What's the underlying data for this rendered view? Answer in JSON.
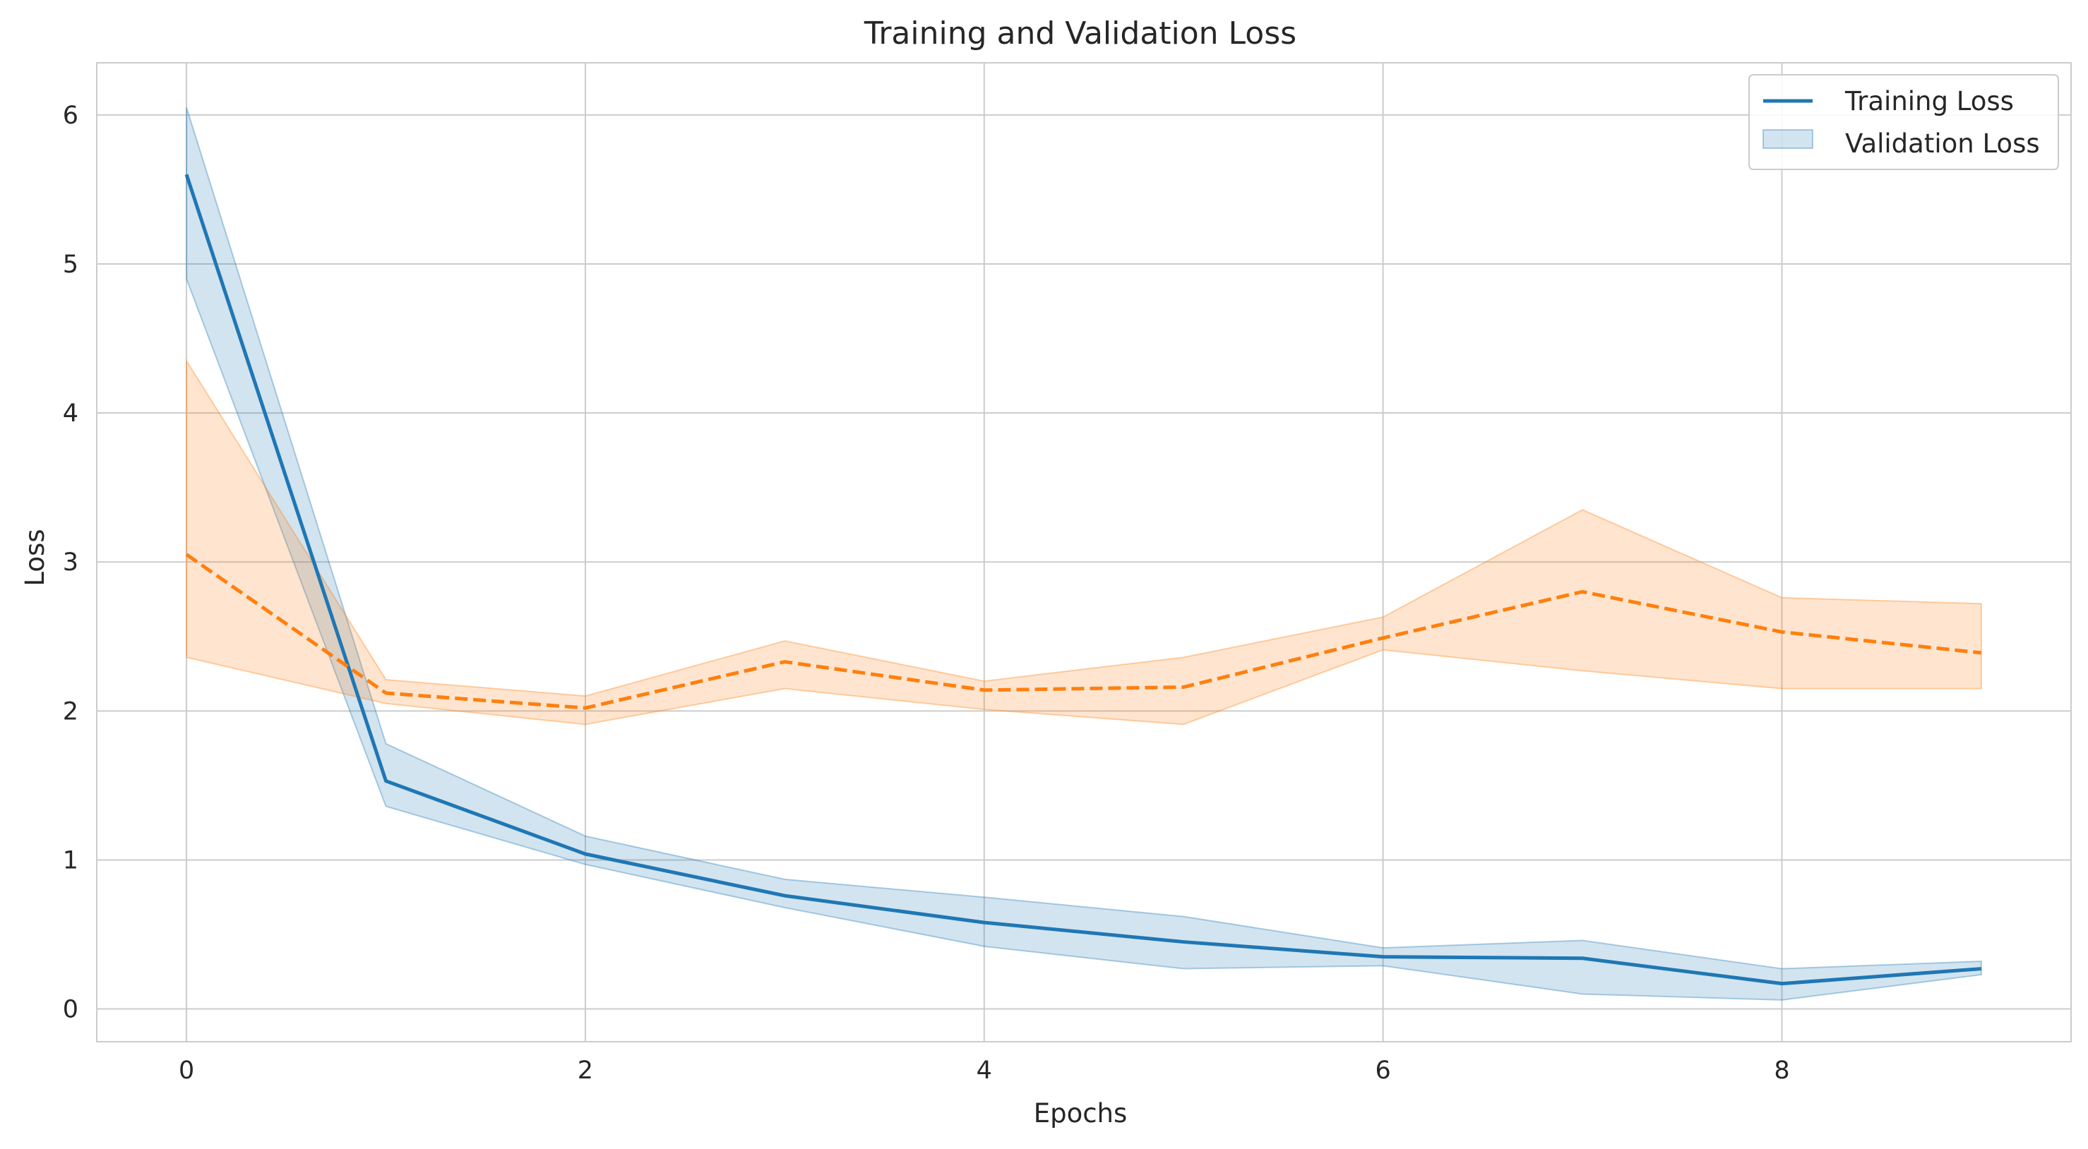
{
  "chart_data": {
    "type": "line",
    "title": "Training and Validation Loss",
    "xlabel": "Epochs",
    "ylabel": "Loss",
    "xlim": [
      -0.45,
      9.45
    ],
    "ylim": [
      -0.22,
      6.35
    ],
    "x_ticks": [
      0,
      2,
      4,
      6,
      8
    ],
    "y_ticks": [
      0,
      1,
      2,
      3,
      4,
      5,
      6
    ],
    "grid": true,
    "legend_position": "top-right",
    "legend": [
      "Training Loss",
      "Validation Loss"
    ],
    "x": [
      0,
      1,
      2,
      3,
      4,
      5,
      6,
      7,
      8,
      9
    ],
    "series": [
      {
        "name": "Training Loss",
        "color": "#1f77b4",
        "line_style": "solid",
        "values": [
          5.6,
          1.53,
          1.04,
          0.76,
          0.58,
          0.45,
          0.35,
          0.34,
          0.17,
          0.27
        ],
        "band_lower": [
          4.9,
          1.36,
          0.97,
          0.68,
          0.42,
          0.27,
          0.29,
          0.1,
          0.06,
          0.23
        ],
        "band_upper": [
          6.05,
          1.78,
          1.16,
          0.87,
          0.75,
          0.62,
          0.41,
          0.46,
          0.27,
          0.32
        ]
      },
      {
        "name": "",
        "color": "#ff7f0e",
        "line_style": "dashed",
        "values": [
          3.05,
          2.12,
          2.02,
          2.33,
          2.14,
          2.16,
          2.49,
          2.8,
          2.53,
          2.39
        ],
        "band_lower": [
          2.36,
          2.05,
          1.91,
          2.15,
          2.01,
          1.91,
          2.41,
          2.27,
          2.15,
          2.15
        ],
        "band_upper": [
          4.35,
          2.21,
          2.1,
          2.47,
          2.2,
          2.36,
          2.63,
          3.35,
          2.76,
          2.72
        ]
      }
    ]
  }
}
